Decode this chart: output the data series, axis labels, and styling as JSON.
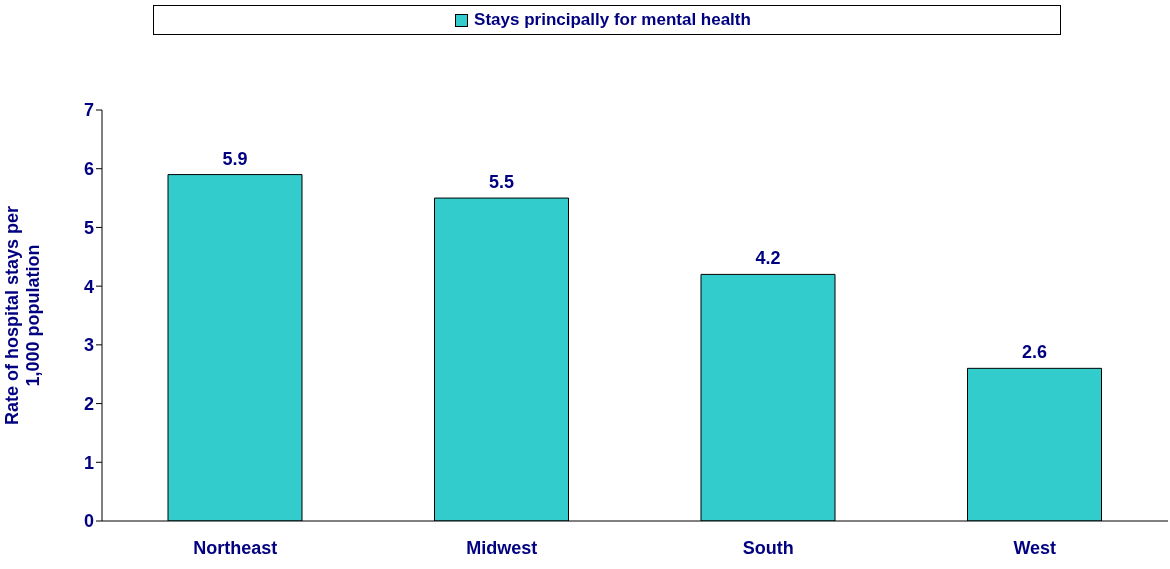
{
  "chart_data": {
    "type": "bar",
    "ylabel": "Rate of hospital stays per 1,000 population",
    "categories": [
      "Northeast",
      "Midwest",
      "South",
      "West"
    ],
    "series": [
      {
        "name": "Stays principally for mental health",
        "color": "#33cccc",
        "values": [
          5.9,
          5.5,
          4.2,
          2.6
        ]
      }
    ],
    "ylim": [
      0,
      7
    ],
    "yticks": [
      0,
      1,
      2,
      3,
      4,
      5,
      6,
      7
    ],
    "grid": false,
    "legend": "top",
    "data_labels": true
  }
}
